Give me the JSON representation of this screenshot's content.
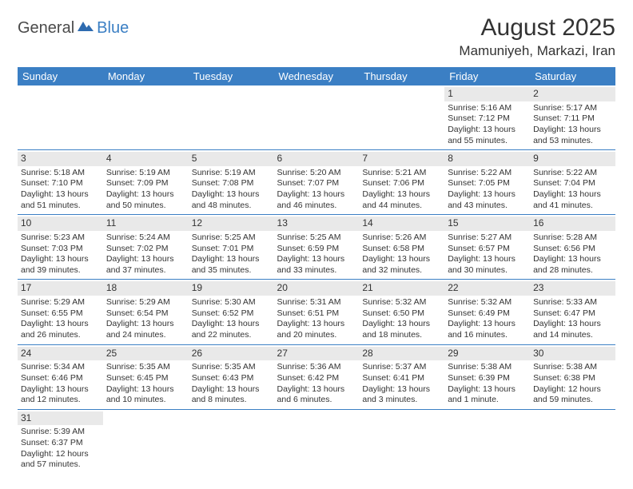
{
  "logo": {
    "text1": "General",
    "text2": "Blue"
  },
  "title": "August 2025",
  "location": "Mamuniyeh, Markazi, Iran",
  "header_bg": "#3b7fc4",
  "daynum_bg": "#e9e9e9",
  "divider_color": "#3b7fc4",
  "weekdays": [
    "Sunday",
    "Monday",
    "Tuesday",
    "Wednesday",
    "Thursday",
    "Friday",
    "Saturday"
  ],
  "weeks": [
    [
      null,
      null,
      null,
      null,
      null,
      {
        "n": "1",
        "sr": "Sunrise: 5:16 AM",
        "ss": "Sunset: 7:12 PM",
        "d1": "Daylight: 13 hours",
        "d2": "and 55 minutes."
      },
      {
        "n": "2",
        "sr": "Sunrise: 5:17 AM",
        "ss": "Sunset: 7:11 PM",
        "d1": "Daylight: 13 hours",
        "d2": "and 53 minutes."
      }
    ],
    [
      {
        "n": "3",
        "sr": "Sunrise: 5:18 AM",
        "ss": "Sunset: 7:10 PM",
        "d1": "Daylight: 13 hours",
        "d2": "and 51 minutes."
      },
      {
        "n": "4",
        "sr": "Sunrise: 5:19 AM",
        "ss": "Sunset: 7:09 PM",
        "d1": "Daylight: 13 hours",
        "d2": "and 50 minutes."
      },
      {
        "n": "5",
        "sr": "Sunrise: 5:19 AM",
        "ss": "Sunset: 7:08 PM",
        "d1": "Daylight: 13 hours",
        "d2": "and 48 minutes."
      },
      {
        "n": "6",
        "sr": "Sunrise: 5:20 AM",
        "ss": "Sunset: 7:07 PM",
        "d1": "Daylight: 13 hours",
        "d2": "and 46 minutes."
      },
      {
        "n": "7",
        "sr": "Sunrise: 5:21 AM",
        "ss": "Sunset: 7:06 PM",
        "d1": "Daylight: 13 hours",
        "d2": "and 44 minutes."
      },
      {
        "n": "8",
        "sr": "Sunrise: 5:22 AM",
        "ss": "Sunset: 7:05 PM",
        "d1": "Daylight: 13 hours",
        "d2": "and 43 minutes."
      },
      {
        "n": "9",
        "sr": "Sunrise: 5:22 AM",
        "ss": "Sunset: 7:04 PM",
        "d1": "Daylight: 13 hours",
        "d2": "and 41 minutes."
      }
    ],
    [
      {
        "n": "10",
        "sr": "Sunrise: 5:23 AM",
        "ss": "Sunset: 7:03 PM",
        "d1": "Daylight: 13 hours",
        "d2": "and 39 minutes."
      },
      {
        "n": "11",
        "sr": "Sunrise: 5:24 AM",
        "ss": "Sunset: 7:02 PM",
        "d1": "Daylight: 13 hours",
        "d2": "and 37 minutes."
      },
      {
        "n": "12",
        "sr": "Sunrise: 5:25 AM",
        "ss": "Sunset: 7:01 PM",
        "d1": "Daylight: 13 hours",
        "d2": "and 35 minutes."
      },
      {
        "n": "13",
        "sr": "Sunrise: 5:25 AM",
        "ss": "Sunset: 6:59 PM",
        "d1": "Daylight: 13 hours",
        "d2": "and 33 minutes."
      },
      {
        "n": "14",
        "sr": "Sunrise: 5:26 AM",
        "ss": "Sunset: 6:58 PM",
        "d1": "Daylight: 13 hours",
        "d2": "and 32 minutes."
      },
      {
        "n": "15",
        "sr": "Sunrise: 5:27 AM",
        "ss": "Sunset: 6:57 PM",
        "d1": "Daylight: 13 hours",
        "d2": "and 30 minutes."
      },
      {
        "n": "16",
        "sr": "Sunrise: 5:28 AM",
        "ss": "Sunset: 6:56 PM",
        "d1": "Daylight: 13 hours",
        "d2": "and 28 minutes."
      }
    ],
    [
      {
        "n": "17",
        "sr": "Sunrise: 5:29 AM",
        "ss": "Sunset: 6:55 PM",
        "d1": "Daylight: 13 hours",
        "d2": "and 26 minutes."
      },
      {
        "n": "18",
        "sr": "Sunrise: 5:29 AM",
        "ss": "Sunset: 6:54 PM",
        "d1": "Daylight: 13 hours",
        "d2": "and 24 minutes."
      },
      {
        "n": "19",
        "sr": "Sunrise: 5:30 AM",
        "ss": "Sunset: 6:52 PM",
        "d1": "Daylight: 13 hours",
        "d2": "and 22 minutes."
      },
      {
        "n": "20",
        "sr": "Sunrise: 5:31 AM",
        "ss": "Sunset: 6:51 PM",
        "d1": "Daylight: 13 hours",
        "d2": "and 20 minutes."
      },
      {
        "n": "21",
        "sr": "Sunrise: 5:32 AM",
        "ss": "Sunset: 6:50 PM",
        "d1": "Daylight: 13 hours",
        "d2": "and 18 minutes."
      },
      {
        "n": "22",
        "sr": "Sunrise: 5:32 AM",
        "ss": "Sunset: 6:49 PM",
        "d1": "Daylight: 13 hours",
        "d2": "and 16 minutes."
      },
      {
        "n": "23",
        "sr": "Sunrise: 5:33 AM",
        "ss": "Sunset: 6:47 PM",
        "d1": "Daylight: 13 hours",
        "d2": "and 14 minutes."
      }
    ],
    [
      {
        "n": "24",
        "sr": "Sunrise: 5:34 AM",
        "ss": "Sunset: 6:46 PM",
        "d1": "Daylight: 13 hours",
        "d2": "and 12 minutes."
      },
      {
        "n": "25",
        "sr": "Sunrise: 5:35 AM",
        "ss": "Sunset: 6:45 PM",
        "d1": "Daylight: 13 hours",
        "d2": "and 10 minutes."
      },
      {
        "n": "26",
        "sr": "Sunrise: 5:35 AM",
        "ss": "Sunset: 6:43 PM",
        "d1": "Daylight: 13 hours",
        "d2": "and 8 minutes."
      },
      {
        "n": "27",
        "sr": "Sunrise: 5:36 AM",
        "ss": "Sunset: 6:42 PM",
        "d1": "Daylight: 13 hours",
        "d2": "and 6 minutes."
      },
      {
        "n": "28",
        "sr": "Sunrise: 5:37 AM",
        "ss": "Sunset: 6:41 PM",
        "d1": "Daylight: 13 hours",
        "d2": "and 3 minutes."
      },
      {
        "n": "29",
        "sr": "Sunrise: 5:38 AM",
        "ss": "Sunset: 6:39 PM",
        "d1": "Daylight: 13 hours",
        "d2": "and 1 minute."
      },
      {
        "n": "30",
        "sr": "Sunrise: 5:38 AM",
        "ss": "Sunset: 6:38 PM",
        "d1": "Daylight: 12 hours",
        "d2": "and 59 minutes."
      }
    ],
    [
      {
        "n": "31",
        "sr": "Sunrise: 5:39 AM",
        "ss": "Sunset: 6:37 PM",
        "d1": "Daylight: 12 hours",
        "d2": "and 57 minutes."
      },
      null,
      null,
      null,
      null,
      null,
      null
    ]
  ]
}
